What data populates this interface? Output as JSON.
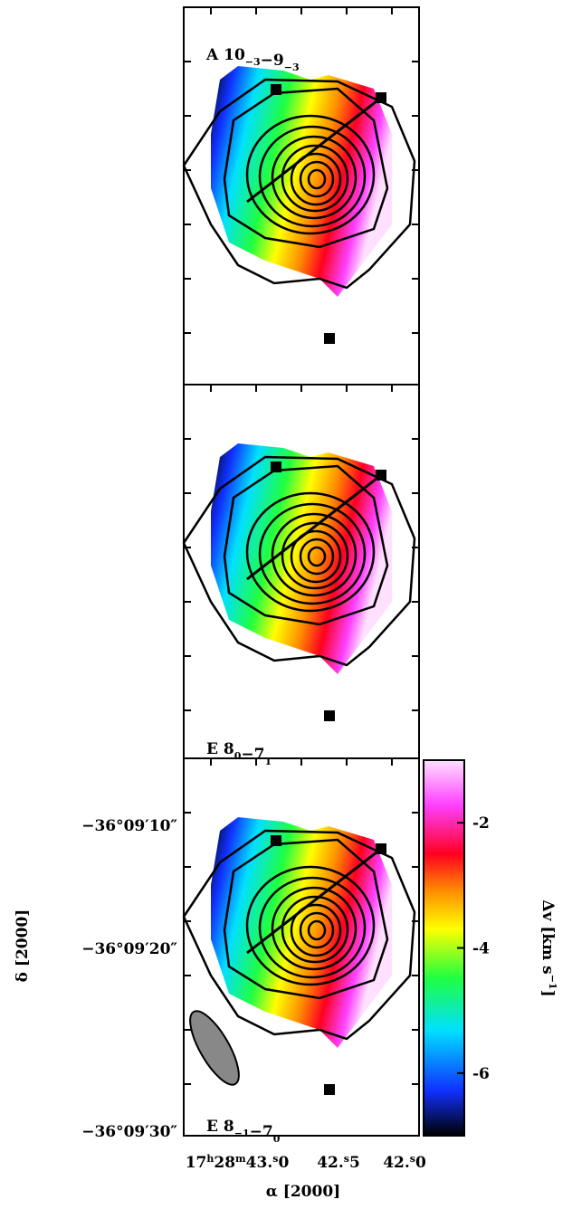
{
  "panels": [
    {
      "species": "A",
      "upper": "10",
      "upper_sub": "−3",
      "lower": "9",
      "lower_sub": "−3"
    },
    {
      "species": "E",
      "upper": "8",
      "upper_sub": "0",
      "lower": "7",
      "lower_sub": "1"
    },
    {
      "species": "E",
      "upper": "8",
      "upper_sub": "−1",
      "lower": "7",
      "lower_sub": "0"
    }
  ],
  "y_axis": {
    "label": "δ [2000]",
    "ticks": [
      "−36°09′10″",
      "−36°09′20″",
      "−36°09′30″"
    ]
  },
  "x_axis": {
    "label": "α [2000]",
    "ticks": [
      {
        "pre": "17",
        "h": "h",
        "mid": "28",
        "m": "m",
        "sec": "43.",
        "s": "s",
        "frac": "0"
      },
      {
        "sec": "42.",
        "s": "s",
        "frac": "5"
      },
      {
        "sec": "42.",
        "s": "s",
        "frac": "0"
      }
    ]
  },
  "colorbar": {
    "label": "Δv [km s",
    "label_sup": "−1",
    "label_end": "]",
    "lim": [
      -7,
      -1
    ],
    "ticks": [
      -2,
      -4,
      -6
    ]
  }
}
